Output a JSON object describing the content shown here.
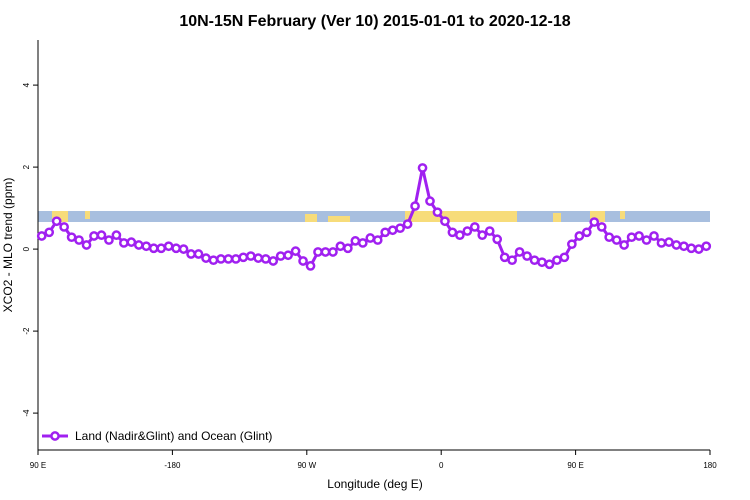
{
  "chart_data": {
    "type": "line",
    "title": "10N-15N February (Ver 10)   2015-01-01 to 2020-12-18",
    "xlabel": "Longitude (deg E)",
    "ylabel": "XCO2 - MLO trend (ppm)",
    "x": [
      -267.5,
      -262.5,
      -257.5,
      -252.5,
      -247.5,
      -242.5,
      -237.5,
      -232.5,
      -227.5,
      -222.5,
      -217.5,
      -212.5,
      -207.5,
      -202.5,
      -197.5,
      -192.5,
      -187.5,
      -182.5,
      -177.5,
      -172.5,
      -167.5,
      -162.5,
      -157.5,
      -152.5,
      -147.5,
      -142.5,
      -137.5,
      -132.5,
      -127.5,
      -122.5,
      -117.5,
      -112.5,
      -107.5,
      -102.5,
      -97.5,
      -92.5,
      -87.5,
      -82.5,
      -77.5,
      -72.5,
      -67.5,
      -62.5,
      -57.5,
      -52.5,
      -47.5,
      -42.5,
      -37.5,
      -32.5,
      -27.5,
      -22.5,
      -17.5,
      -12.5,
      -7.5,
      -2.5,
      2.5,
      7.5,
      12.5,
      17.5,
      22.5,
      27.5,
      32.5,
      37.5,
      42.5,
      47.5,
      52.5,
      57.5,
      62.5,
      67.5,
      72.5,
      77.5,
      82.5,
      87.5,
      92.5,
      97.5,
      102.5,
      107.5,
      112.5,
      117.5,
      122.5,
      127.5,
      132.5,
      137.5,
      142.5,
      147.5,
      152.5,
      157.5,
      162.5,
      167.5,
      172.5,
      177.5
    ],
    "series": [
      {
        "name": "Land (Nadir&Glint) and Ocean (Glint)",
        "color": "#a020f0",
        "values": [
          0.32,
          0.41,
          0.68,
          0.54,
          0.29,
          0.22,
          0.1,
          0.32,
          0.34,
          0.22,
          0.34,
          0.15,
          0.17,
          0.1,
          0.07,
          0.02,
          0.02,
          0.07,
          0.02,
          0,
          -0.12,
          -0.12,
          -0.22,
          -0.27,
          -0.24,
          -0.24,
          -0.24,
          -0.2,
          -0.17,
          -0.22,
          -0.24,
          -0.29,
          -0.17,
          -0.15,
          -0.05,
          -0.29,
          -0.41,
          -0.07,
          -0.07,
          -0.07,
          0.07,
          0.02,
          0.2,
          0.15,
          0.27,
          0.22,
          0.41,
          0.46,
          0.51,
          0.61,
          1.05,
          1.98,
          1.17,
          0.9,
          0.68,
          0.41,
          0.34,
          0.44,
          0.54,
          0.34,
          0.44,
          0.24,
          -0.2,
          -0.27,
          -0.07,
          -0.17,
          -0.27,
          -0.32,
          -0.37,
          -0.27,
          -0.2,
          0.12,
          0.32,
          0.41,
          0.66,
          0.54,
          0.29,
          0.22,
          0.1,
          0.29,
          0.32,
          0.22,
          0.32,
          0.15,
          0.17,
          0.1,
          0.07,
          0.02,
          0,
          0.07
        ]
      }
    ],
    "xlim": [
      -270,
      180
    ],
    "xticks": [
      {
        "value": -270,
        "label": "90 E"
      },
      -180,
      {
        "value": -90,
        "label": "90 W"
      },
      0,
      {
        "value": 90,
        "label": "90 E"
      },
      180
    ],
    "ylim": [
      -4.9,
      5.1
    ],
    "yticks": [
      -4,
      -2,
      0,
      2,
      4
    ],
    "legend": "bottom-left"
  }
}
